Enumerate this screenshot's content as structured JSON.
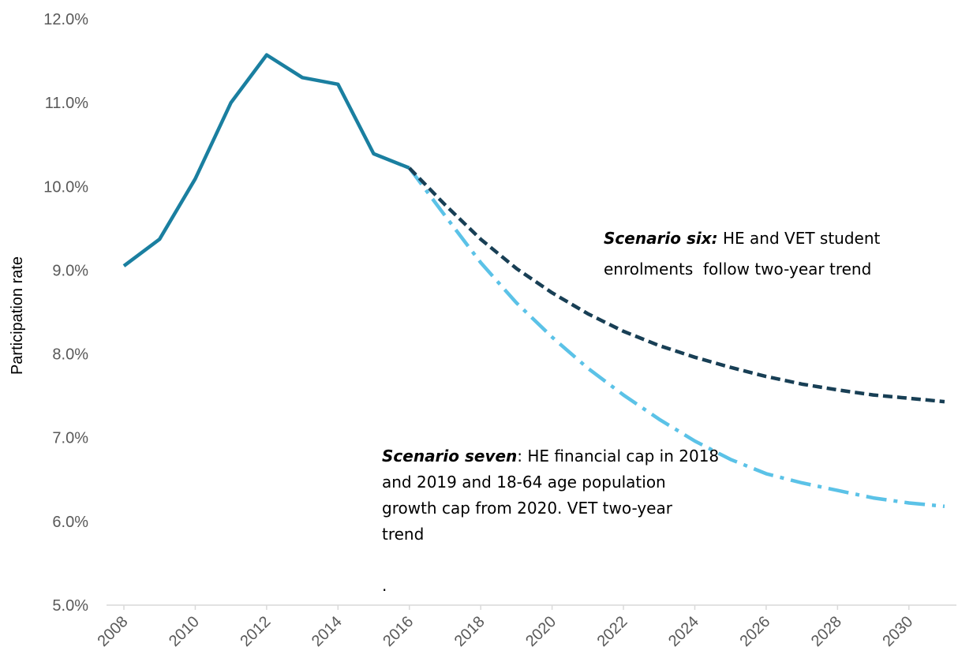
{
  "chart_data": {
    "type": "line",
    "xlabel": "",
    "ylabel": "Participation rate",
    "ylim": [
      5.0,
      12.0
    ],
    "xlim": [
      2008,
      2031
    ],
    "y_ticks": [
      "5.0%",
      "6.0%",
      "7.0%",
      "8.0%",
      "9.0%",
      "10.0%",
      "11.0%",
      "12.0%"
    ],
    "y_tick_values": [
      5,
      6,
      7,
      8,
      9,
      10,
      11,
      12
    ],
    "x_ticks": [
      "2008",
      "2010",
      "2012",
      "2014",
      "2016",
      "2018",
      "2020",
      "2022",
      "2024",
      "2026",
      "2028",
      "2030"
    ],
    "x_tick_values": [
      2008,
      2010,
      2012,
      2014,
      2016,
      2018,
      2020,
      2022,
      2024,
      2026,
      2028,
      2030
    ],
    "grid": false,
    "series": [
      {
        "style": "solid",
        "color": "#1a7fa0",
        "x": [
          2008,
          2009,
          2010,
          2011,
          2012,
          2013,
          2014,
          2015,
          2016
        ],
        "values": [
          9.05,
          9.37,
          10.09,
          11.0,
          11.57,
          11.3,
          11.22,
          10.39,
          10.22
        ]
      },
      {
        "style": "dashed",
        "color": "#183f55",
        "x": [
          2016,
          2017,
          2018,
          2019,
          2020,
          2021,
          2022,
          2023,
          2024,
          2025,
          2026,
          2027,
          2028,
          2029,
          2030,
          2031
        ],
        "values": [
          10.22,
          9.78,
          9.37,
          9.02,
          8.73,
          8.48,
          8.27,
          8.1,
          7.96,
          7.84,
          7.73,
          7.64,
          7.57,
          7.51,
          7.47,
          7.43
        ]
      },
      {
        "style": "dash-dot",
        "color": "#5bc2e7",
        "x": [
          2016,
          2017,
          2018,
          2019,
          2020,
          2021,
          2022,
          2023,
          2024,
          2025,
          2026,
          2027,
          2028,
          2029,
          2030,
          2031
        ],
        "values": [
          10.22,
          9.65,
          9.09,
          8.61,
          8.2,
          7.83,
          7.51,
          7.22,
          6.96,
          6.74,
          6.57,
          6.46,
          6.37,
          6.28,
          6.22,
          6.18
        ]
      }
    ],
    "annotations": {
      "six_bold": "Scenario six:",
      "six_line1": " HE and VET student",
      "six_line2": "enrolments  follow two-year trend",
      "seven_bold": "Scenario seven",
      "seven_line1": ": HE financial cap in 2018",
      "seven_line2": "and 2019 and 18-64 age population",
      "seven_line3": "growth cap from 2020. VET two-year",
      "seven_line4": "trend",
      "seven_dot": "."
    }
  }
}
